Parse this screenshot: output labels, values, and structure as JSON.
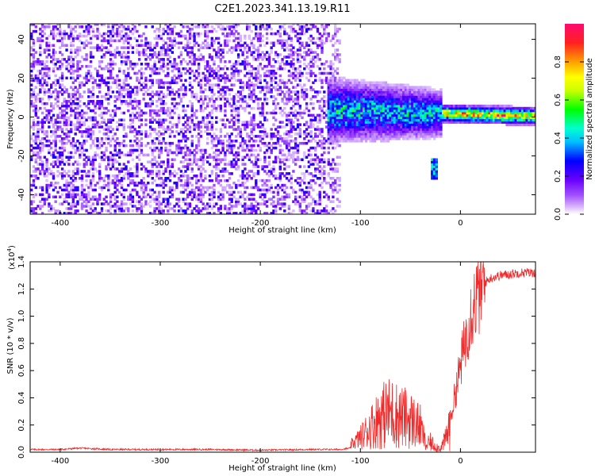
{
  "figure": {
    "title": "C2E1.2023.341.13.19.R11"
  },
  "chart_data": [
    {
      "type": "heatmap",
      "title": "",
      "xlabel": "Height of straight line (km)",
      "ylabel": "Frequency (Hz)",
      "xlim": [
        -430,
        75
      ],
      "ylim": [
        -50,
        48
      ],
      "x_ticks": [
        -400,
        -300,
        -200,
        -100,
        0
      ],
      "y_ticks": [
        -40,
        -20,
        0,
        20,
        40
      ],
      "colorbar": {
        "label": "Normalized spectral amplitude",
        "range": [
          0,
          1
        ],
        "ticks": [
          0.0,
          0.2,
          0.4,
          0.6,
          0.8
        ],
        "colormap": [
          "#ffffff",
          "#d8b4ff",
          "#a050ff",
          "#6a00ff",
          "#0000ff",
          "#00bfff",
          "#00ffd0",
          "#00ff00",
          "#ccff00",
          "#ffff00",
          "#ffa000",
          "#ff2020",
          "#ff0a6e"
        ]
      },
      "regions": [
        {
          "description": "noise",
          "x_range": [
            -430,
            -120
          ],
          "freq_range": [
            -50,
            48
          ],
          "amplitude": [
            0.0,
            0.25
          ]
        },
        {
          "description": "signal trace",
          "x_range": [
            -135,
            75
          ],
          "freq_center_start": 3,
          "freq_center_end": 0,
          "amplitude_peak": 0.95
        },
        {
          "description": "isolated feature",
          "x_range": [
            -30,
            -25
          ],
          "freq_range": [
            -33,
            -22
          ],
          "amplitude_peak": 0.5
        }
      ]
    },
    {
      "type": "line",
      "title": "",
      "xlabel": "Height of straight line (km)",
      "ylabel": "SNR (10 * v/v)",
      "y_multiplier_label": "(x10",
      "y_multiplier_exp": "4",
      "y_multiplier_close": ")",
      "xlim": [
        -430,
        75
      ],
      "ylim": [
        0,
        1.4
      ],
      "x_ticks": [
        -400,
        -300,
        -200,
        -100,
        0
      ],
      "y_ticks": [
        "0.0",
        "0.2",
        "0.4",
        "0.6",
        "0.8",
        "1.0",
        "1.2",
        "1.4"
      ],
      "series": [
        {
          "color": "#ee2a2a",
          "x": [
            -430,
            -400,
            -380,
            -350,
            -300,
            -250,
            -200,
            -150,
            -120,
            -110,
            -100,
            -90,
            -80,
            -70,
            -60,
            -50,
            -40,
            -35,
            -30,
            -25,
            -20,
            -15,
            -10,
            -5,
            0,
            5,
            10,
            15,
            20,
            30,
            40,
            50,
            60,
            75
          ],
          "y": [
            0.02,
            0.02,
            0.03,
            0.02,
            0.02,
            0.02,
            0.015,
            0.02,
            0.02,
            0.03,
            0.08,
            0.15,
            0.22,
            0.25,
            0.22,
            0.2,
            0.15,
            0.05,
            0.08,
            0.05,
            0.03,
            0.1,
            0.25,
            0.45,
            0.65,
            0.85,
            1.05,
            1.15,
            1.22,
            1.28,
            1.3,
            1.31,
            1.32,
            1.32
          ]
        }
      ]
    }
  ]
}
